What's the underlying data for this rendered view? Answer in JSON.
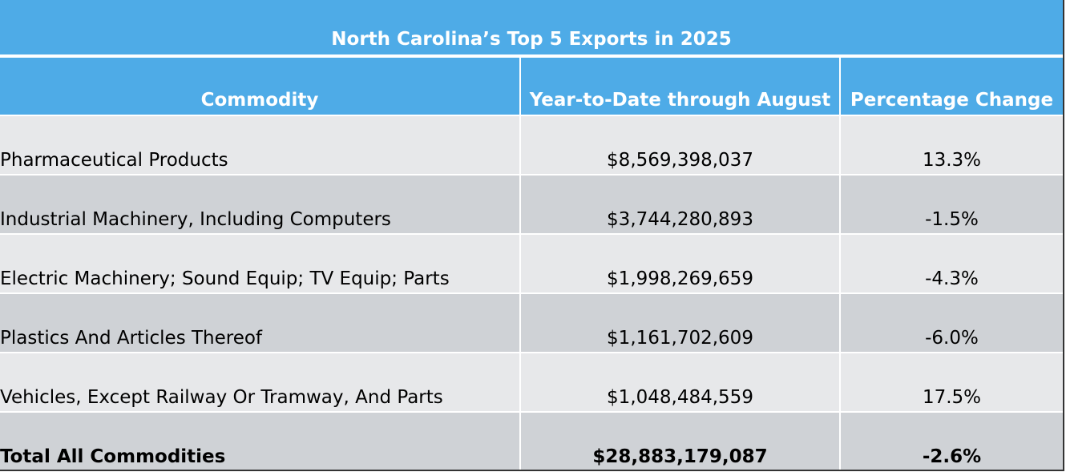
{
  "chart_data": {
    "type": "table",
    "title": "North Carolina’s Top 5 Exports in 2025",
    "columns": [
      "Commodity",
      "Year-to-Date through August",
      "Percentage Change"
    ],
    "rows": [
      {
        "commodity": "Pharmaceutical Products",
        "ytd": "$8,569,398,037",
        "change": "13.3%"
      },
      {
        "commodity": "Industrial Machinery, Including Computers",
        "ytd": "$3,744,280,893",
        "change": "-1.5%"
      },
      {
        "commodity": "Electric Machinery; Sound Equip; TV Equip; Parts",
        "ytd": "$1,998,269,659",
        "change": "-4.3%"
      },
      {
        "commodity": "Plastics And Articles Thereof",
        "ytd": "$1,161,702,609",
        "change": "-6.0%"
      },
      {
        "commodity": "Vehicles, Except Railway Or Tramway, And Parts",
        "ytd": "$1,048,484,559",
        "change": "17.5%"
      }
    ],
    "total": {
      "commodity": "Total All Commodities",
      "ytd": "$28,883,179,087",
      "change": "-2.6%"
    },
    "colors": {
      "header": "#4eabe7",
      "row_light": "#e7e8ea",
      "row_dark": "#cfd2d6"
    }
  }
}
